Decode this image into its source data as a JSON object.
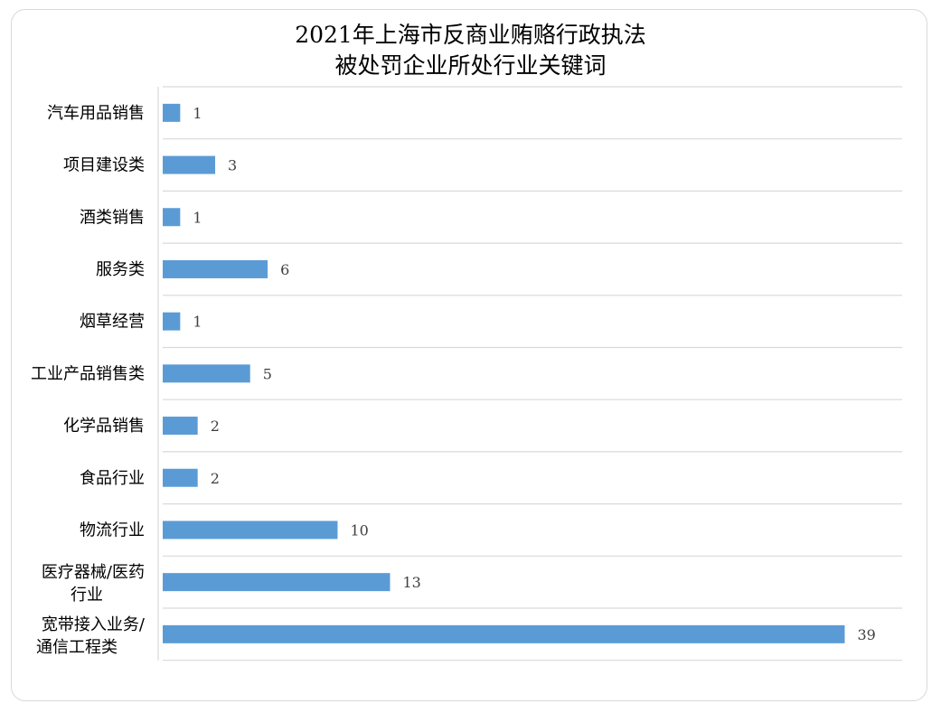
{
  "chart_data": {
    "type": "bar",
    "orientation": "horizontal",
    "title": "2021年上海市反商业贿赂行政执法被处罚企业所处行业关键词",
    "title_lines": [
      "2021年上海市反商业贿赂行政执法",
      "被处罚企业所处行业关键词"
    ],
    "categories": [
      "汽车用品销售",
      "项目建设类",
      "酒类销售",
      "服务类",
      "烟草经营",
      "工业产品销售类",
      "化学品销售",
      "食品行业",
      "物流行业",
      "医疗器械/医药行业",
      "宽带接入业务/通信工程类"
    ],
    "category_lines": [
      [
        "汽车用品销售"
      ],
      [
        "项目建设类"
      ],
      [
        "酒类销售"
      ],
      [
        "服务类"
      ],
      [
        "烟草经营"
      ],
      [
        "工业产品销售类"
      ],
      [
        "化学品销售"
      ],
      [
        "食品行业"
      ],
      [
        "物流行业"
      ],
      [
        "医疗器械/医药",
        "行业"
      ],
      [
        "宽带接入业务/",
        "通信工程类"
      ]
    ],
    "values": [
      1,
      3,
      1,
      6,
      1,
      5,
      2,
      2,
      10,
      13,
      39
    ],
    "xlim": [
      0,
      40
    ],
    "grid": "horizontal",
    "bar_color": "#5b9bd5",
    "data_labels": true,
    "legend": "none"
  }
}
